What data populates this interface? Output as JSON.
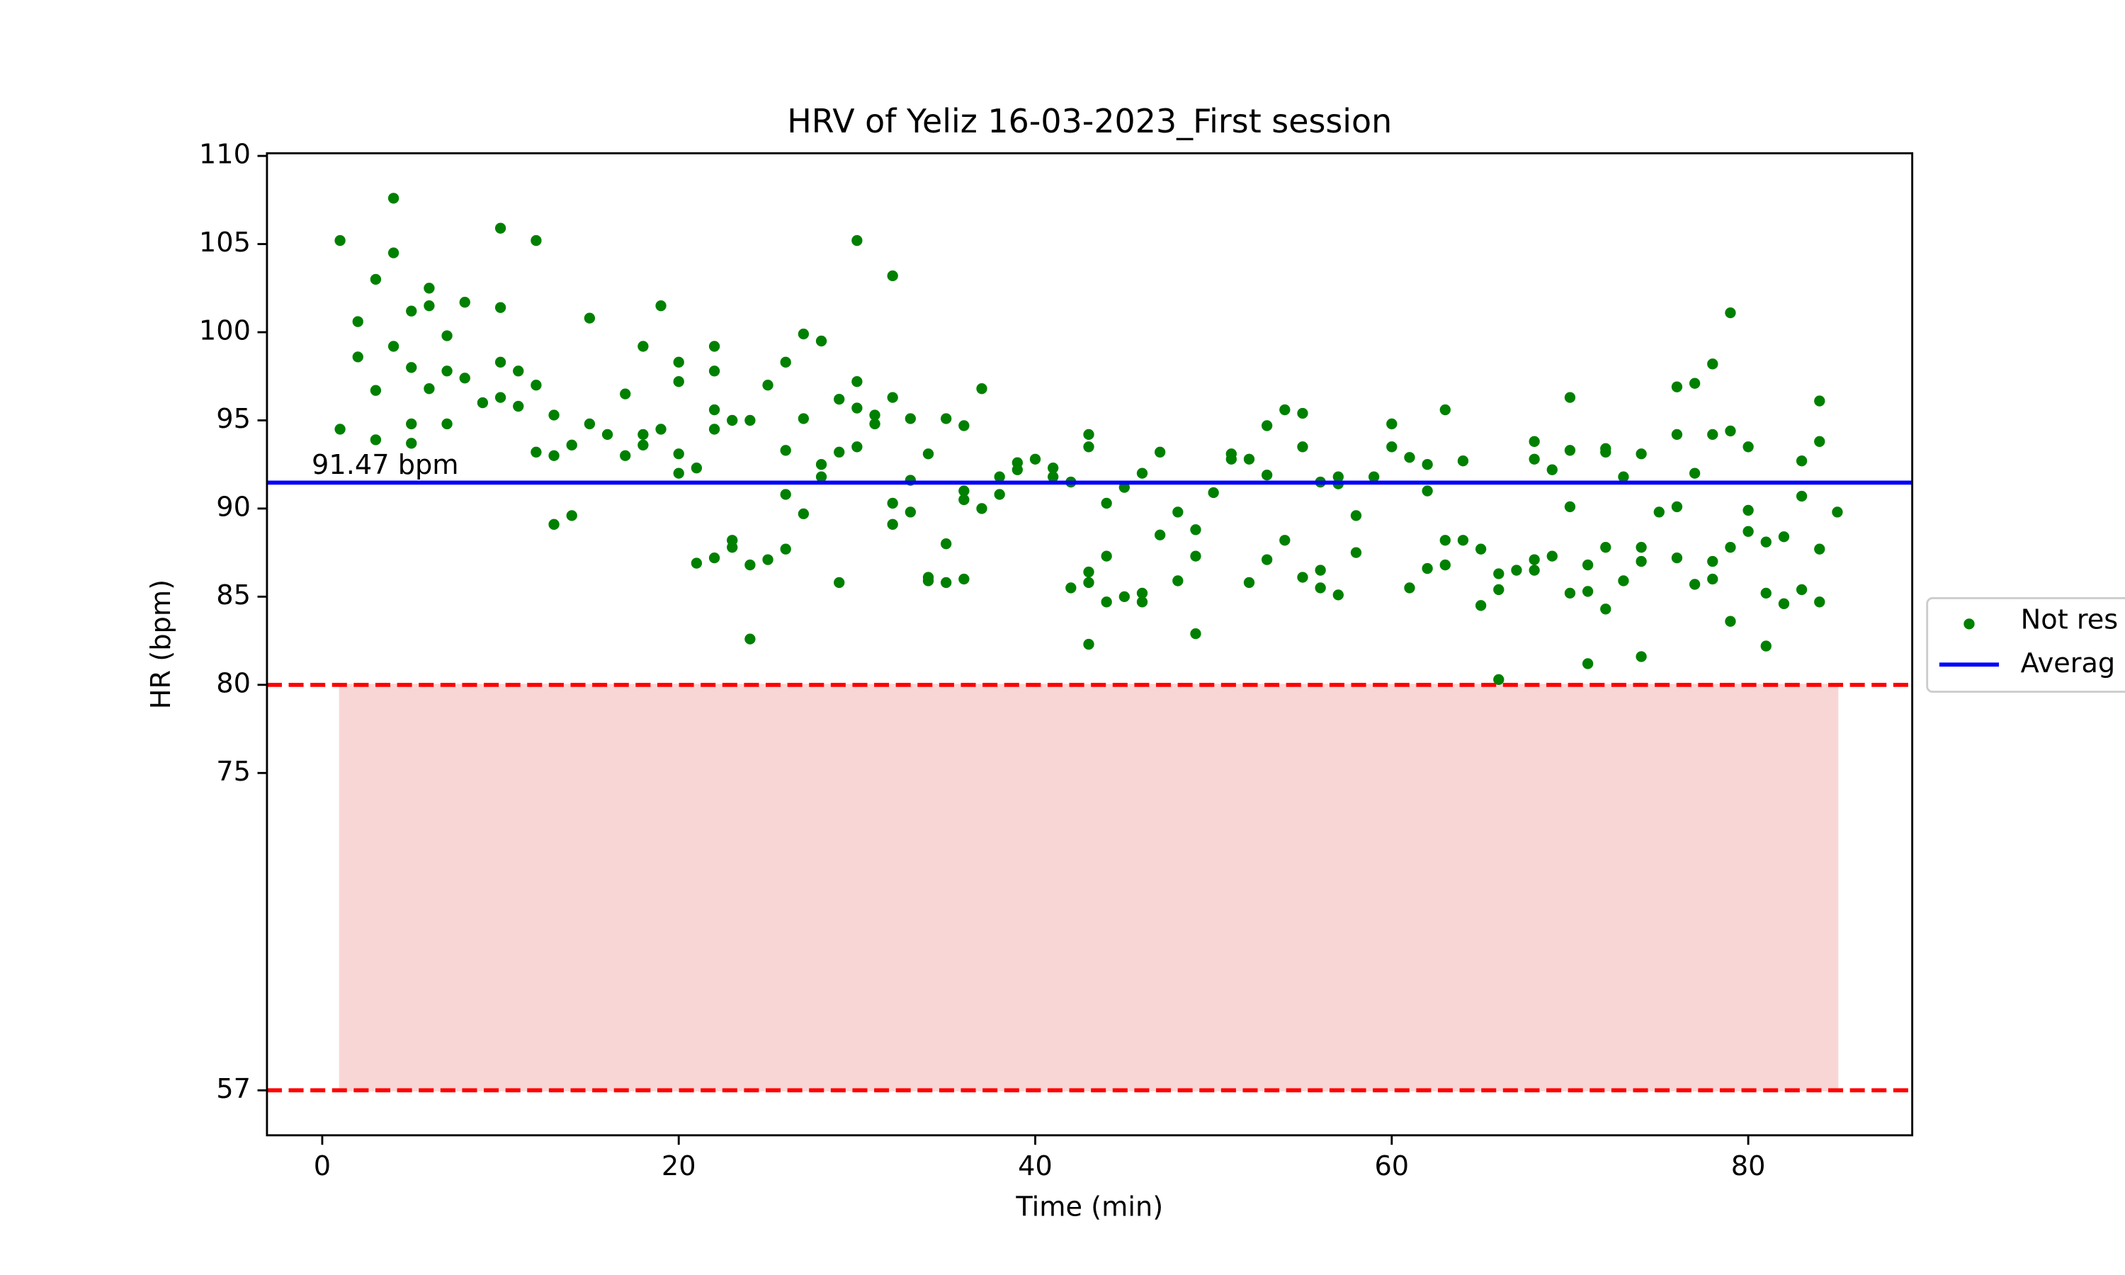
{
  "chart_data": {
    "type": "scatter",
    "title": "HRV of Yeliz 16-03-2023_First session",
    "x_label": "Time (min)",
    "y_label": "HR (bpm)",
    "xlim": [
      -3.1,
      89.2
    ],
    "ylim": [
      54.45,
      110.15
    ],
    "xticks": [
      0,
      20,
      40,
      60,
      80
    ],
    "yticks": [
      57,
      75,
      80,
      85,
      90,
      95,
      100,
      105,
      110
    ],
    "grid": false,
    "legend": "center right outside",
    "shaded_region": {
      "xlim": [
        1,
        85
      ],
      "ylim": [
        57,
        80
      ],
      "color": "#f9d6d6",
      "line_color": "#ff0000"
    },
    "series": [
      {
        "name": "Not res",
        "type": "scatter",
        "color": "#008000",
        "x": [
          1,
          1,
          2,
          2,
          3,
          3,
          3,
          4,
          4,
          4,
          5,
          5,
          5,
          5,
          6,
          6,
          6,
          7,
          7,
          7,
          8,
          8,
          9,
          10,
          10,
          10,
          10,
          11,
          11,
          12,
          12,
          12,
          13,
          13,
          13,
          14,
          14,
          15,
          15,
          16,
          17,
          17,
          18,
          18,
          18,
          19,
          19,
          20,
          20,
          20,
          20,
          21,
          21,
          22,
          22,
          22,
          22,
          22,
          23,
          23,
          23,
          24,
          24,
          24,
          25,
          25,
          26,
          26,
          26,
          26,
          27,
          27,
          27,
          28,
          28,
          28,
          29,
          29,
          29,
          30,
          30,
          30,
          30,
          31,
          31,
          32,
          32,
          32,
          32,
          33,
          33,
          33,
          34,
          34,
          34,
          35,
          35,
          35,
          36,
          36,
          36,
          36,
          37,
          37,
          38,
          38,
          39,
          39,
          40,
          41,
          41,
          42,
          42,
          43,
          43,
          43,
          43,
          43,
          44,
          44,
          44,
          45,
          45,
          46,
          46,
          46,
          47,
          47,
          48,
          48,
          49,
          49,
          49,
          50,
          51,
          51,
          52,
          52,
          53,
          53,
          53,
          54,
          54,
          55,
          55,
          55,
          56,
          56,
          56,
          57,
          57,
          57,
          58,
          58,
          59,
          60,
          60,
          61,
          61,
          62,
          62,
          62,
          63,
          63,
          63,
          64,
          64,
          65,
          65,
          66,
          66,
          66,
          67,
          68,
          68,
          68,
          68,
          69,
          69,
          70,
          70,
          70,
          70,
          71,
          71,
          71,
          72,
          72,
          72,
          72,
          73,
          73,
          74,
          74,
          74,
          74,
          75,
          76,
          76,
          76,
          76,
          77,
          77,
          77,
          78,
          78,
          78,
          78,
          79,
          79,
          79,
          79,
          80,
          80,
          80,
          81,
          81,
          81,
          82,
          82,
          83,
          83,
          83,
          84,
          84,
          84,
          84,
          85
        ],
        "values": [
          105.2,
          94.5,
          100.6,
          98.6,
          103,
          96.7,
          93.9,
          107.6,
          104.5,
          99.2,
          101.2,
          98,
          94.8,
          93.7,
          102.5,
          101.5,
          96.8,
          99.8,
          97.8,
          94.8,
          101.7,
          97.4,
          96,
          105.9,
          101.4,
          98.3,
          96.3,
          97.8,
          95.8,
          105.2,
          97,
          93.2,
          95.3,
          93,
          89.1,
          93.6,
          89.6,
          100.8,
          94.8,
          94.2,
          96.5,
          93,
          99.2,
          94.2,
          93.6,
          101.5,
          94.5,
          98.3,
          97.2,
          93.1,
          92,
          92.3,
          86.9,
          99.2,
          97.8,
          95.6,
          94.5,
          87.2,
          95,
          88.2,
          87.8,
          95,
          86.8,
          82.6,
          97,
          87.1,
          98.3,
          93.3,
          90.8,
          87.7,
          99.9,
          95.1,
          89.7,
          99.5,
          92.5,
          91.8,
          96.2,
          93.2,
          85.8,
          105.2,
          97.2,
          95.7,
          93.5,
          95.3,
          94.8,
          103.2,
          96.3,
          90.3,
          89.1,
          95.1,
          91.6,
          89.8,
          93.1,
          86.1,
          85.9,
          95.1,
          88,
          85.8,
          94.7,
          91,
          90.5,
          86,
          96.8,
          90,
          91.8,
          90.8,
          92.6,
          92.2,
          92.8,
          92.3,
          91.8,
          91.5,
          85.5,
          94.2,
          93.5,
          86.4,
          85.8,
          82.3,
          90.3,
          87.3,
          84.7,
          91.2,
          85,
          92,
          85.2,
          84.7,
          93.2,
          88.5,
          89.8,
          85.9,
          88.8,
          87.3,
          82.9,
          90.9,
          93.1,
          92.8,
          92.8,
          85.8,
          94.7,
          91.9,
          87.1,
          95.6,
          88.2,
          95.4,
          93.5,
          86.1,
          91.5,
          86.5,
          85.5,
          91.8,
          91.4,
          85.1,
          89.6,
          87.5,
          91.8,
          94.8,
          93.5,
          92.9,
          85.5,
          92.5,
          91,
          86.6,
          95.6,
          88.2,
          86.8,
          92.7,
          88.2,
          87.7,
          84.5,
          86.3,
          85.4,
          80.3,
          86.5,
          93.8,
          92.8,
          87.1,
          86.5,
          92.2,
          87.3,
          96.3,
          93.3,
          90.1,
          85.2,
          86.8,
          85.3,
          81.2,
          93.4,
          93.2,
          87.8,
          84.3,
          91.8,
          85.9,
          93.1,
          87.8,
          87,
          81.6,
          89.8,
          96.9,
          94.2,
          90.1,
          87.2,
          97.1,
          92,
          85.7,
          98.2,
          94.2,
          87,
          86,
          101.1,
          94.4,
          87.8,
          83.6,
          93.5,
          89.9,
          88.7,
          88.1,
          85.2,
          82.2,
          88.4,
          84.6,
          92.7,
          90.7,
          85.4,
          96.1,
          93.8,
          87.7,
          84.7,
          89.8
        ]
      },
      {
        "name": "Averag",
        "type": "hline",
        "color": "#0000ff",
        "values": [
          91.47
        ],
        "value_labels": [
          "91.47 bpm"
        ]
      }
    ]
  }
}
